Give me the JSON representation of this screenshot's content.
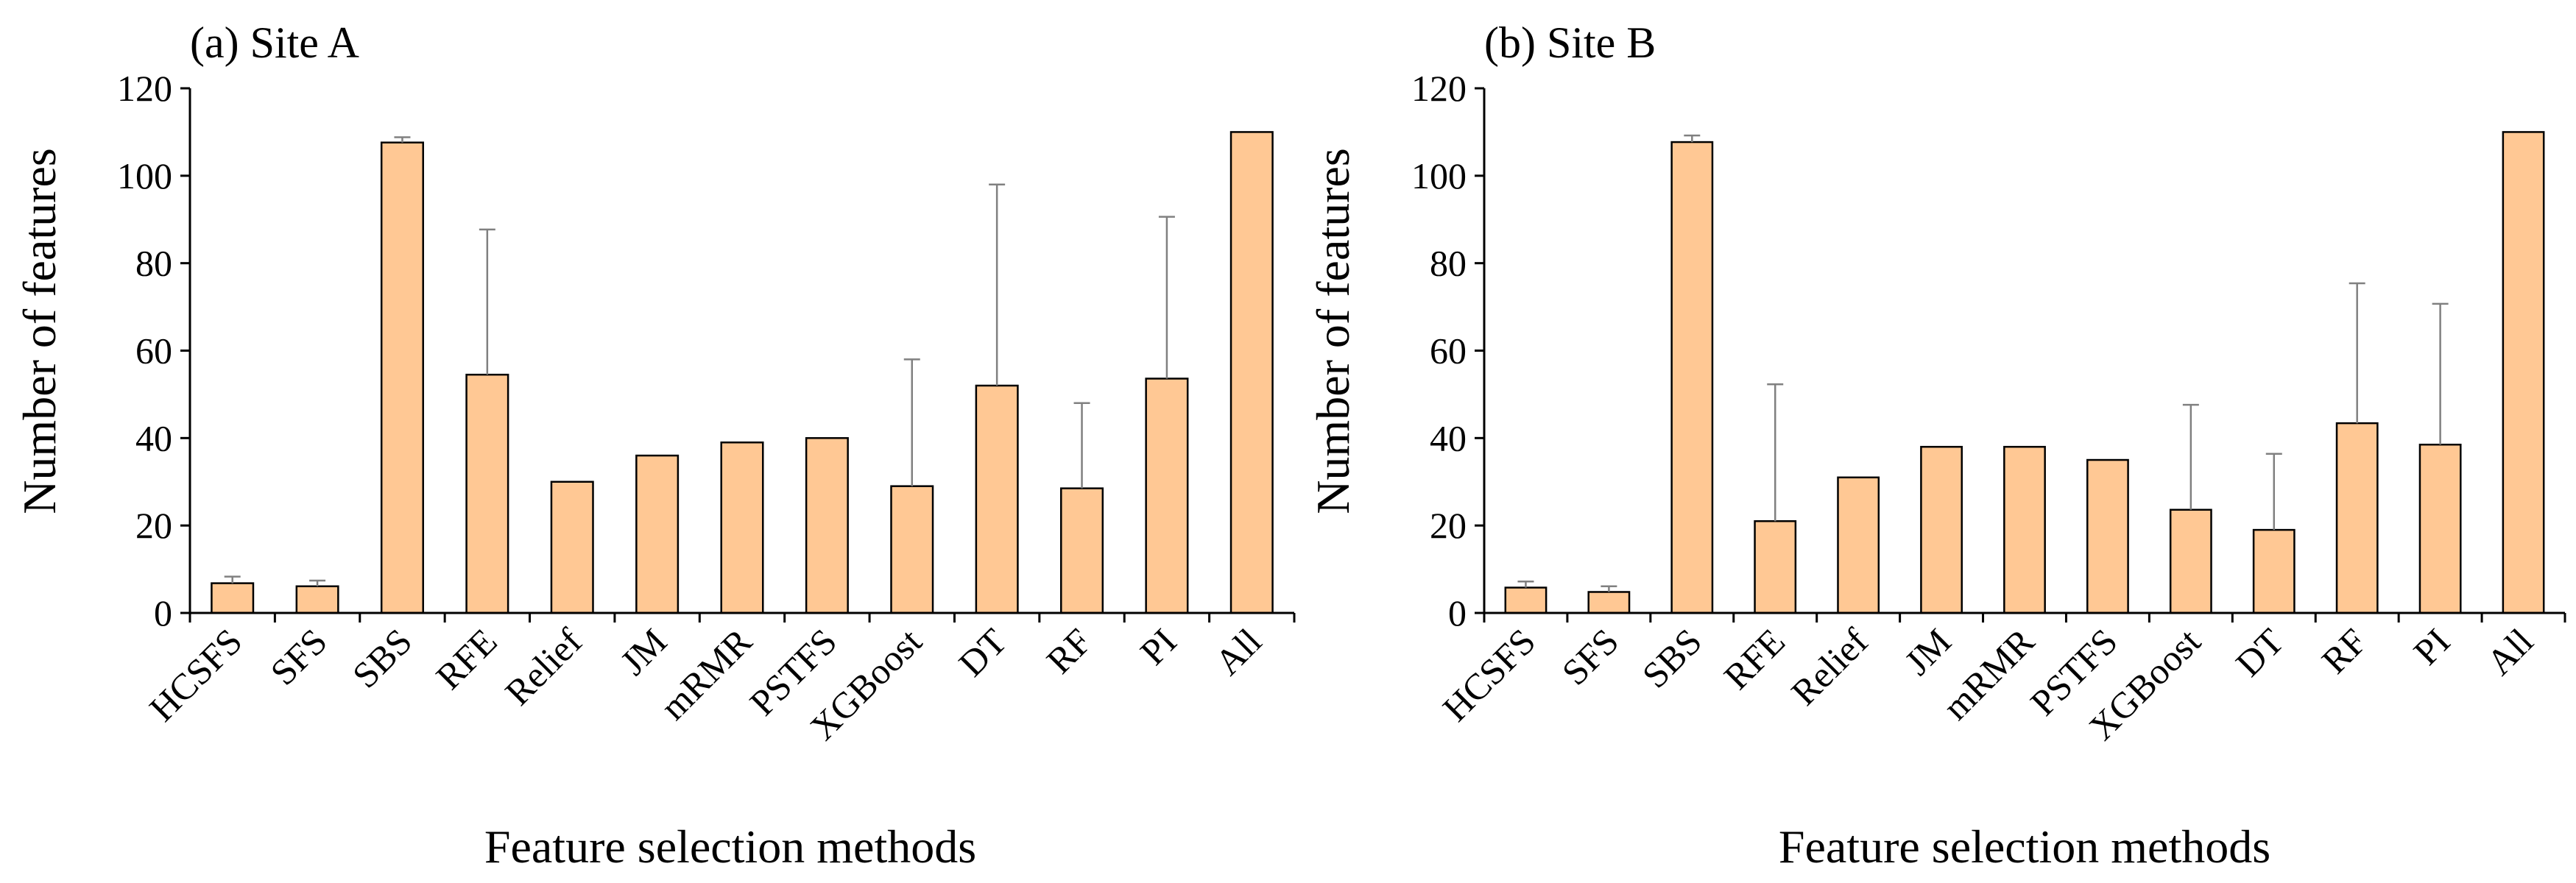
{
  "colors": {
    "bar_fill": "#FFC894",
    "bar_stroke": "#000000",
    "error_bar": "#808080",
    "axis": "#000000"
  },
  "chart_data": [
    {
      "type": "bar",
      "title": "(a) Site A",
      "xlabel": "Feature selection methods",
      "ylabel": "Number of features",
      "ylim": [
        0,
        120
      ],
      "yticks": [
        0,
        20,
        40,
        60,
        80,
        100,
        120
      ],
      "grid": false,
      "categories": [
        "HCSFS",
        "SFS",
        "SBS",
        "RFE",
        "Relief",
        "JM",
        "mRMR",
        "PSTFS",
        "XGBoost",
        "DT",
        "RF",
        "PI",
        "All"
      ],
      "values": [
        6.8,
        6.1,
        107.6,
        54.5,
        30,
        36,
        39,
        40,
        29,
        52,
        28.5,
        53.6,
        110
      ],
      "error_upper": [
        1.5,
        1.3,
        1.2,
        33.2,
        0,
        0,
        0,
        0,
        29,
        46,
        19.5,
        37,
        0
      ]
    },
    {
      "type": "bar",
      "title": "(b) Site B",
      "xlabel": "Feature selection methods",
      "ylabel": "Number of features",
      "ylim": [
        0,
        120
      ],
      "yticks": [
        0,
        20,
        40,
        60,
        80,
        100,
        120
      ],
      "grid": false,
      "categories": [
        "HCSFS",
        "SFS",
        "SBS",
        "RFE",
        "Relief",
        "JM",
        "mRMR",
        "PSTFS",
        "XGBoost",
        "DT",
        "RF",
        "PI",
        "All"
      ],
      "values": [
        5.8,
        4.8,
        107.7,
        21,
        31,
        38,
        38,
        35,
        23.6,
        19,
        43.4,
        38.5,
        110
      ],
      "error_upper": [
        1.4,
        1.3,
        1.5,
        31.3,
        0,
        0,
        0,
        0,
        24,
        17.4,
        32,
        32.2,
        0
      ]
    }
  ]
}
